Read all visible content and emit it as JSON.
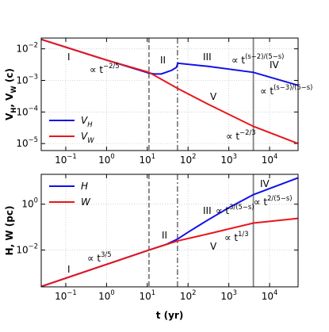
{
  "chart_data": [
    {
      "type": "line",
      "log_x": true,
      "log_y": true,
      "grid": true,
      "legend": "lower left",
      "ylabel": "V_H, V_W (c)",
      "xlim": [
        0.025,
        50000
      ],
      "ylim": [
        6e-06,
        0.022
      ],
      "xticks": [
        {
          "value": 0.1,
          "label": "10^{−1}"
        },
        {
          "value": 1,
          "label": "10^{0}"
        },
        {
          "value": 10,
          "label": "10^{1}"
        },
        {
          "value": 100,
          "label": "10^{2}"
        },
        {
          "value": 1000,
          "label": "10^{3}"
        },
        {
          "value": 10000,
          "label": "10^{4}"
        }
      ],
      "yticks": [
        {
          "value": 0.01,
          "label": "10^{−2}"
        },
        {
          "value": 0.001,
          "label": "10^{−3}"
        },
        {
          "value": 0.0001,
          "label": "10^{−4}"
        },
        {
          "value": 1e-05,
          "label": "10^{−5}"
        }
      ],
      "vlines": [
        {
          "x": 11,
          "style": "dashed"
        },
        {
          "x": 55,
          "style": "dashdot"
        },
        {
          "x": 4000,
          "style": "solid"
        }
      ],
      "series": [
        {
          "name": "V_H",
          "color": "#1010e8",
          "x": [
            0.025,
            1,
            11,
            15,
            22,
            40,
            52,
            56,
            300,
            4000,
            50000
          ],
          "values": [
            0.02,
            0.0044,
            0.0017,
            0.0016,
            0.0016,
            0.0021,
            0.0026,
            0.0035,
            0.0028,
            0.0018,
            0.0007
          ]
        },
        {
          "name": "V_W",
          "color": "#e8161b",
          "x": [
            0.025,
            1,
            11,
            55,
            300,
            4000,
            50000
          ],
          "values": [
            0.02,
            0.0044,
            0.0018,
            0.00056,
            0.00018,
            3.5e-05,
            1e-05
          ]
        }
      ],
      "annotations": [
        {
          "text": "I",
          "color": "#000000"
        },
        {
          "text": "∝ t^{−2/5}",
          "color": "#000000"
        },
        {
          "text": "II",
          "color": "#1010e8"
        },
        {
          "text": "III",
          "color": "#1010e8"
        },
        {
          "text": "∝ t^{(s−2)/(5−s)}",
          "color": "#1010e8"
        },
        {
          "text": "IV",
          "color": "#1010e8"
        },
        {
          "text": "∝ t^{(s−3)/(5−s)}",
          "color": "#1010e8"
        },
        {
          "text": "V",
          "color": "#e8161b"
        },
        {
          "text": "∝ t^{−2/3}",
          "color": "#e8161b"
        }
      ]
    },
    {
      "type": "line",
      "log_x": true,
      "log_y": true,
      "grid": true,
      "legend": "upper left",
      "ylabel": "H, W (pc)",
      "xlabel": "t (yr)",
      "xlim": [
        0.025,
        50000
      ],
      "ylim": [
        0.00025,
        20
      ],
      "xticks": [
        {
          "value": 0.1,
          "label": "10^{−1}"
        },
        {
          "value": 1,
          "label": "10^{0}"
        },
        {
          "value": 10,
          "label": "10^{1}"
        },
        {
          "value": 100,
          "label": "10^{2}"
        },
        {
          "value": 1000,
          "label": "10^{3}"
        },
        {
          "value": 10000,
          "label": "10^{4}"
        }
      ],
      "yticks": [
        {
          "value": 1,
          "label": "10^{0}"
        },
        {
          "value": 0.01,
          "label": "10^{−2}"
        }
      ],
      "vlines": [
        {
          "x": 11,
          "style": "dashed"
        },
        {
          "x": 55,
          "style": "dashdot"
        },
        {
          "x": 4000,
          "style": "solid"
        }
      ],
      "series": [
        {
          "name": "H",
          "color": "#1010e8",
          "x": [
            0.025,
            11,
            30,
            55,
            100,
            300,
            1000,
            4000,
            50000
          ],
          "values": [
            0.00026,
            0.01,
            0.018,
            0.03,
            0.06,
            0.2,
            0.7,
            2.6,
            14
          ]
        },
        {
          "name": "W",
          "color": "#e8161b",
          "x": [
            0.025,
            11,
            55,
            300,
            4000,
            50000
          ],
          "values": [
            0.00026,
            0.01,
            0.025,
            0.05,
            0.15,
            0.24
          ]
        }
      ],
      "annotations": [
        {
          "text": "I",
          "color": "#000000"
        },
        {
          "text": "∝ t^{3/5}",
          "color": "#000000"
        },
        {
          "text": "II",
          "color": "#1010e8"
        },
        {
          "text": "III",
          "color": "#1010e8"
        },
        {
          "text": "∝ t^{3/(5−s)}",
          "color": "#1010e8"
        },
        {
          "text": "IV",
          "color": "#1010e8"
        },
        {
          "text": "∝ t^{2/(5−s)}",
          "color": "#1010e8"
        },
        {
          "text": "V",
          "color": "#e8161b"
        },
        {
          "text": "∝ t^{1/3}",
          "color": "#e8161b"
        }
      ]
    }
  ]
}
